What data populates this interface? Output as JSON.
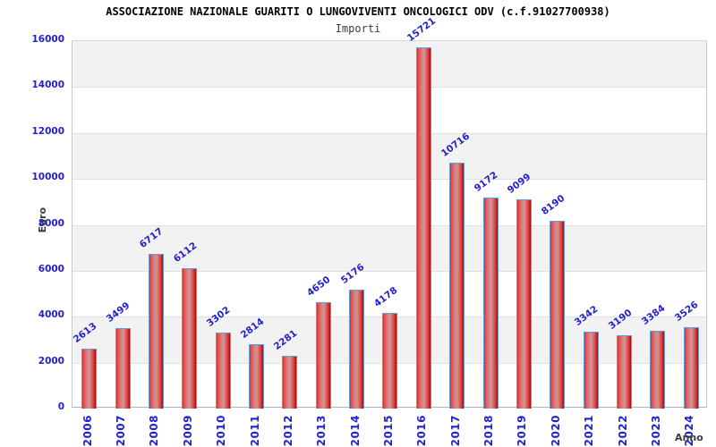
{
  "title": "ASSOCIAZIONE NAZIONALE GUARITI O LUNGOVIVENTI ONCOLOGICI ODV (c.f.91027700938)",
  "subtitle": "Importi",
  "chart_data": {
    "type": "bar",
    "title": "ASSOCIAZIONE NAZIONALE GUARITI O LUNGOVIVENTI ONCOLOGICI ODV (c.f.91027700938)",
    "subtitle": "Importi",
    "xlabel": "Anno",
    "ylabel": "Euro",
    "categories": [
      "2006",
      "2007",
      "2008",
      "2009",
      "2010",
      "2011",
      "2012",
      "2013",
      "2014",
      "2015",
      "2016",
      "2017",
      "2018",
      "2019",
      "2020",
      "2021",
      "2022",
      "2023",
      "2024"
    ],
    "values": [
      2613,
      3499,
      6717,
      6112,
      3302,
      2814,
      2281,
      4650,
      5176,
      4178,
      15721,
      10716,
      9172,
      9099,
      8190,
      3342,
      3190,
      3384,
      3526
    ],
    "ylim": [
      0,
      16000
    ],
    "ytick_step": 2000,
    "grid": true,
    "alternating_bands": true,
    "legend": "none",
    "value_labels_rotated": true,
    "xtick_rotation": 90
  },
  "colors": {
    "label_blue": "#2222cc",
    "bar_border": "#5ba0da",
    "bar_gradient_stops": [
      "#d92b2b",
      "#e85050",
      "#cf8f8f",
      "#cf8f8f",
      "#e04848",
      "#d92222",
      "#8e0e0e"
    ],
    "band_gray": "#f2f2f2",
    "band_white": "#ffffff",
    "grid_line": "#e0e0e0",
    "axis_title": "#3c3c3c",
    "title_color": "#000000",
    "subtitle_color": "#3d3d3d"
  }
}
